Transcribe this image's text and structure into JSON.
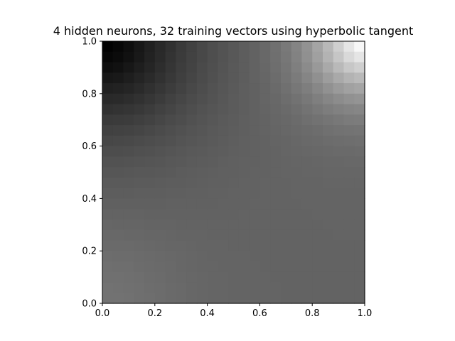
{
  "chart_data": {
    "type": "heatmap",
    "title": "4 hidden neurons, 32 training vectors using hyperbolic tangent",
    "xlabel": "",
    "ylabel": "",
    "xlim": [
      0.0,
      1.0
    ],
    "ylim": [
      0.0,
      1.0
    ],
    "x_ticks": [
      "0.0",
      "0.2",
      "0.4",
      "0.6",
      "0.8",
      "1.0"
    ],
    "y_ticks": [
      "0.0",
      "0.2",
      "0.4",
      "0.6",
      "0.8",
      "1.0"
    ],
    "colormap": "gray",
    "grid": false,
    "legend": "none",
    "grid_resolution": [
      25,
      25
    ],
    "description_of_field": "Network output over the unit square on a 25x25 grid: darkest near (0,1), brightest near (1,1), near-uniform mid-gray elsewhere.",
    "intensity_model": {
      "background_level": 0.39,
      "dark_corner": {
        "x": 0.0,
        "y": 1.0,
        "level": 0.0
      },
      "bright_corner": {
        "x": 1.0,
        "y": 1.0,
        "level": 1.0
      },
      "bottom_left_level": 0.45
    }
  }
}
